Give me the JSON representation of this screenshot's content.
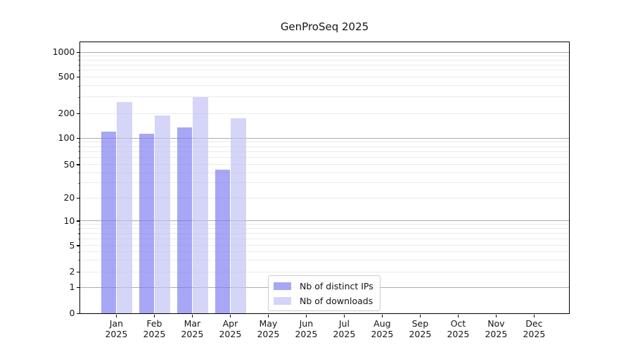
{
  "colors": {
    "distinct_ips_fill": "rgba(120,120,240,0.65)",
    "downloads_fill": "rgba(190,190,245,0.65)",
    "distinct_ips_solid": "#a7a7f5",
    "downloads_solid": "#d4d4f8",
    "grid_major": "#ababab",
    "grid_minor": "#ebebeb",
    "axis": "#000000",
    "text": "#151515"
  },
  "chart_data": {
    "type": "bar",
    "title": "GenProSeq 2025",
    "yscale": "symlog",
    "ylim": [
      0,
      1300
    ],
    "yticks": [
      0,
      1,
      2,
      5,
      10,
      20,
      50,
      100,
      200,
      500,
      1000
    ],
    "grid": "both",
    "legend_position": "lower center",
    "categories": [
      "Jan 2025",
      "Feb 2025",
      "Mar 2025",
      "Apr 2025",
      "May 2025",
      "Jun 2025",
      "Jul 2025",
      "Aug 2025",
      "Sep 2025",
      "Oct 2025",
      "Nov 2025",
      "Dec 2025"
    ],
    "x_tick_labels": [
      [
        "Jan",
        "2025"
      ],
      [
        "Feb",
        "2025"
      ],
      [
        "Mar",
        "2025"
      ],
      [
        "Apr",
        "2025"
      ],
      [
        "May",
        "2025"
      ],
      [
        "Jun",
        "2025"
      ],
      [
        "Jul",
        "2025"
      ],
      [
        "Aug",
        "2025"
      ],
      [
        "Sep",
        "2025"
      ],
      [
        "Oct",
        "2025"
      ],
      [
        "Nov",
        "2025"
      ],
      [
        "Dec",
        "2025"
      ]
    ],
    "series": [
      {
        "name": "Nb of distinct IPs",
        "key": "distinct_ips",
        "values": [
          120,
          113,
          135,
          43,
          0,
          0,
          0,
          0,
          0,
          0,
          0,
          0
        ]
      },
      {
        "name": "Nb of downloads",
        "key": "downloads",
        "values": [
          265,
          190,
          300,
          175,
          0,
          0,
          0,
          0,
          0,
          0,
          0,
          0
        ]
      }
    ]
  }
}
